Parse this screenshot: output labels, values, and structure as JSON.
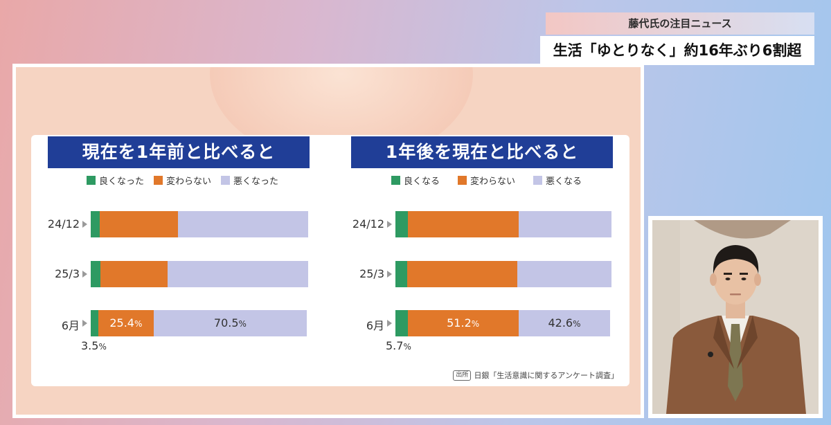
{
  "caption": {
    "sub": "藤代氏の注目ニュース",
    "main": "生活「ゆとりなく」約16年ぶり6割超"
  },
  "source": {
    "tag": "出所",
    "text": "日銀「生活意識に関するアンケート調査」"
  },
  "colors": {
    "good": "#2e9a62",
    "same": "#e1782a",
    "bad": "#c3c5e6",
    "title_bg": "#203e97"
  },
  "chart_data": [
    {
      "type": "bar",
      "stacked": true,
      "orientation": "horizontal",
      "title": "現在を1年前と比べると",
      "legend": [
        "良くなった",
        "変わらない",
        "悪くなった"
      ],
      "categories": [
        "24/12",
        "25/3",
        "6月"
      ],
      "series": [
        {
          "name": "良くなった",
          "values": [
            4.2,
            4.5,
            3.5
          ]
        },
        {
          "name": "変わらない",
          "values": [
            36.0,
            31.0,
            25.4
          ]
        },
        {
          "name": "悪くなった",
          "values": [
            59.8,
            64.5,
            70.5
          ]
        }
      ],
      "labels": {
        "good": "3.5",
        "same": "25.4",
        "bad": "70.5",
        "unit": "%"
      },
      "xlim": [
        0,
        100
      ]
    },
    {
      "type": "bar",
      "stacked": true,
      "orientation": "horizontal",
      "title": "1年後を現在と比べると",
      "legend": [
        "良くなる",
        "変わらない",
        "悪くなる"
      ],
      "categories": [
        "24/12",
        "25/3",
        "6月"
      ],
      "series": [
        {
          "name": "良くなる",
          "values": [
            5.7,
            5.5,
            5.7
          ]
        },
        {
          "name": "変わらない",
          "values": [
            51.5,
            51.0,
            51.2
          ]
        },
        {
          "name": "悪くなる",
          "values": [
            42.8,
            43.5,
            42.6
          ]
        }
      ],
      "labels": {
        "good": "5.7",
        "same": "51.2",
        "bad": "42.6",
        "unit": "%"
      },
      "xlim": [
        0,
        100
      ]
    }
  ]
}
